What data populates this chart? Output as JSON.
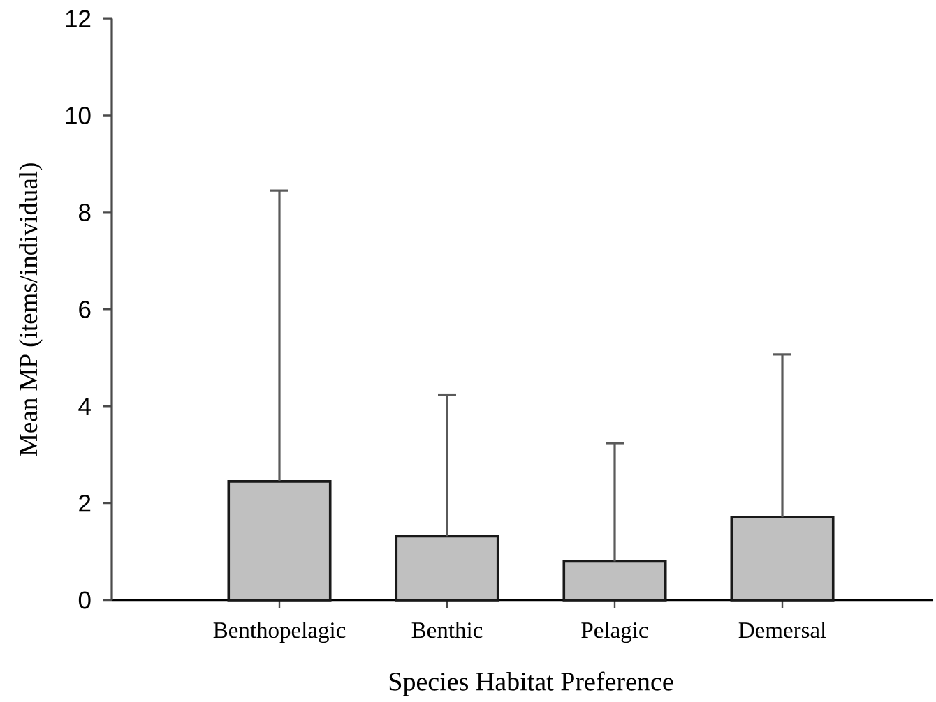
{
  "chart_data": {
    "type": "bar",
    "xlabel": "Species Habitat Preference",
    "ylabel": "Mean MP (items/individual)",
    "categories": [
      "Benthopelagic",
      "Benthic",
      "Pelagic",
      "Demersal"
    ],
    "values": [
      2.45,
      1.32,
      0.8,
      1.71
    ],
    "errors": [
      [
        2.45,
        8.45
      ],
      [
        1.32,
        4.24
      ],
      [
        0.8,
        3.24
      ],
      [
        1.71,
        5.07
      ]
    ],
    "color": "#c0c0c0",
    "ylim": [
      0,
      12
    ],
    "yticks": [
      0,
      2,
      4,
      6,
      8,
      10,
      12
    ]
  }
}
